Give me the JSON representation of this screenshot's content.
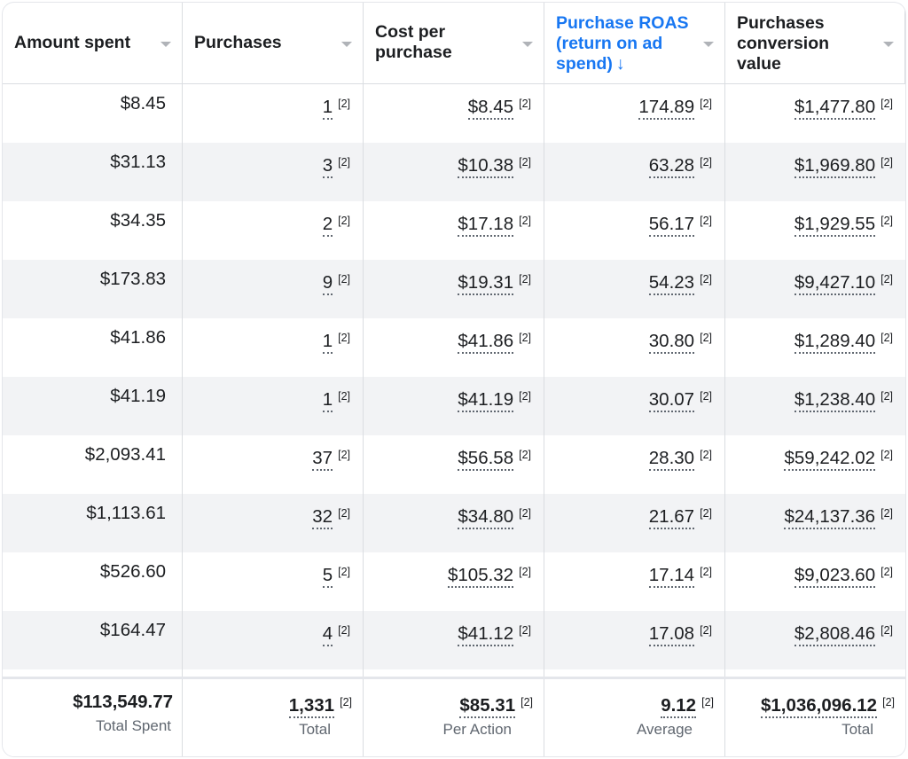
{
  "columns": [
    {
      "label": "Amount spent",
      "sorted": false
    },
    {
      "label": "Purchases",
      "sorted": false
    },
    {
      "label": "Cost per purchase",
      "sorted": false
    },
    {
      "label": "Purchase ROAS (return on ad spend)",
      "sorted": true,
      "sort_indicator": "↓"
    },
    {
      "label": "Purchases conversion value",
      "sorted": false
    }
  ],
  "note_marker": "[2]",
  "rows": [
    {
      "spent": "$8.45",
      "purchases": "1",
      "cost": "$8.45",
      "roas": "174.89",
      "value": "$1,477.80"
    },
    {
      "spent": "$31.13",
      "purchases": "3",
      "cost": "$10.38",
      "roas": "63.28",
      "value": "$1,969.80"
    },
    {
      "spent": "$34.35",
      "purchases": "2",
      "cost": "$17.18",
      "roas": "56.17",
      "value": "$1,929.55"
    },
    {
      "spent": "$173.83",
      "purchases": "9",
      "cost": "$19.31",
      "roas": "54.23",
      "value": "$9,427.10"
    },
    {
      "spent": "$41.86",
      "purchases": "1",
      "cost": "$41.86",
      "roas": "30.80",
      "value": "$1,289.40"
    },
    {
      "spent": "$41.19",
      "purchases": "1",
      "cost": "$41.19",
      "roas": "30.07",
      "value": "$1,238.40"
    },
    {
      "spent": "$2,093.41",
      "purchases": "37",
      "cost": "$56.58",
      "roas": "28.30",
      "value": "$59,242.02"
    },
    {
      "spent": "$1,113.61",
      "purchases": "32",
      "cost": "$34.80",
      "roas": "21.67",
      "value": "$24,137.36"
    },
    {
      "spent": "$526.60",
      "purchases": "5",
      "cost": "$105.32",
      "roas": "17.14",
      "value": "$9,023.60"
    },
    {
      "spent": "$164.47",
      "purchases": "4",
      "cost": "$41.12",
      "roas": "17.08",
      "value": "$2,808.46"
    }
  ],
  "totals": [
    {
      "value": "$113,549.77",
      "label": "Total Spent",
      "note": false
    },
    {
      "value": "1,331",
      "label": "Total",
      "note": true
    },
    {
      "value": "$85.31",
      "label": "Per Action",
      "note": true
    },
    {
      "value": "9.12",
      "label": "Average",
      "note": true
    },
    {
      "value": "$1,036,096.12",
      "label": "Total",
      "note": true
    }
  ]
}
